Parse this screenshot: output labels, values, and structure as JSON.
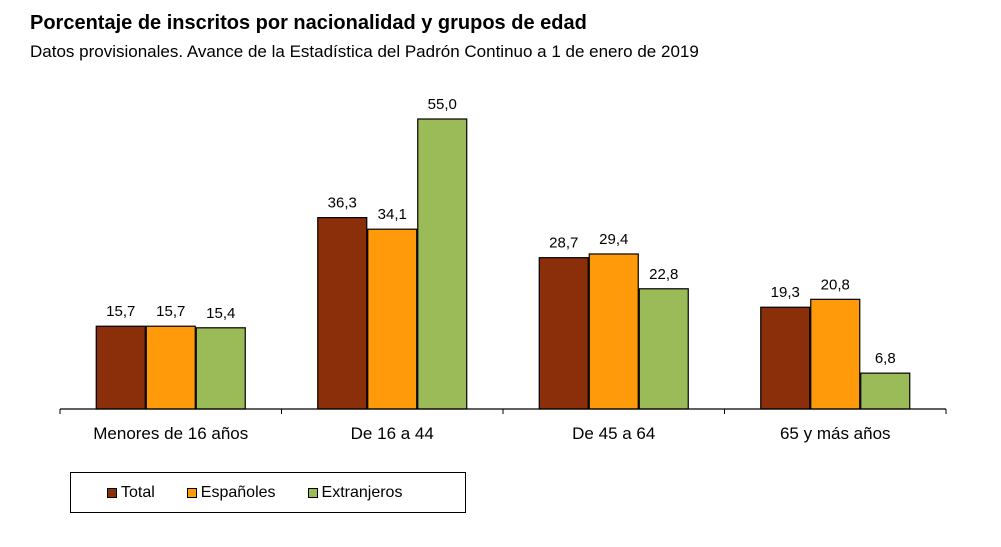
{
  "chart_data": {
    "type": "bar",
    "title": "Porcentaje de inscritos por nacionalidad y grupos de edad",
    "subtitle": "Datos provisionales. Avance de la Estadística del Padrón Continuo a 1 de enero de 2019",
    "categories": [
      "Menores de 16 años",
      "De 16 a 44",
      "De 45 a 64",
      "65 y más años"
    ],
    "series": [
      {
        "name": "Total",
        "color": "#8B2E0A",
        "values": [
          15.7,
          36.3,
          28.7,
          19.3
        ],
        "labels": [
          "15,7",
          "36,3",
          "28,7",
          "19,3"
        ]
      },
      {
        "name": "Españoles",
        "color": "#FF9B0A",
        "values": [
          15.7,
          34.1,
          29.4,
          20.8
        ],
        "labels": [
          "15,7",
          "34,1",
          "29,4",
          "20,8"
        ]
      },
      {
        "name": "Extranjeros",
        "color": "#9BBB59",
        "values": [
          15.4,
          55.0,
          22.8,
          6.8
        ],
        "labels": [
          "15,4",
          "55,0",
          "22,8",
          "6,8"
        ]
      }
    ],
    "xlabel": "",
    "ylabel": "",
    "ylim": [
      0,
      55
    ],
    "grid": false,
    "legend_position": "bottom-left"
  }
}
